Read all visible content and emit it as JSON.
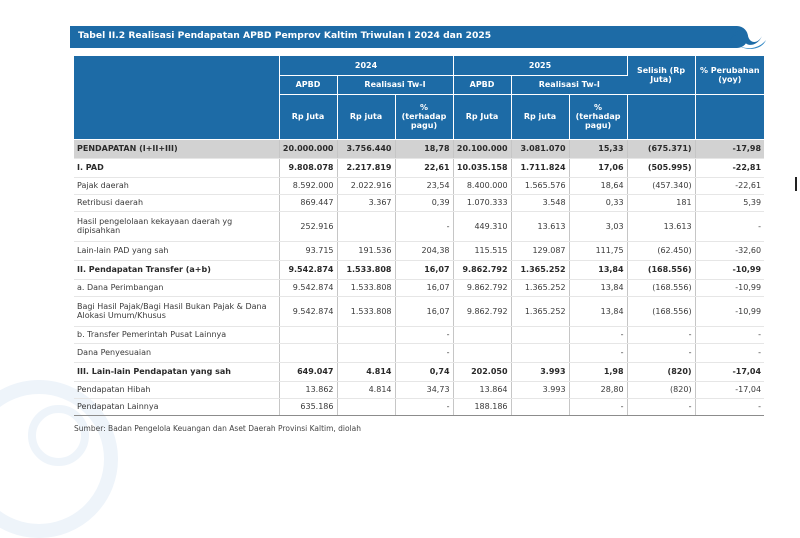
{
  "title": "Tabel II.2 Realisasi Pendapatan APBD Pemprov Kaltim Triwulan I 2024 dan 2025",
  "header": {
    "year_2024": "2024",
    "year_2025": "2025",
    "apbd": "APBD",
    "realisasi": "Realisasi Tw-I",
    "rp_juta_upper": "Rp Juta",
    "rp_juta_lower": "Rp juta",
    "pct": "% (terhadap pagu)",
    "selisih": "Selisih (Rp Juta)",
    "perubahan": "% Perubahan (yoy)"
  },
  "rows": [
    {
      "label": "PENDAPATAN (I+II+III)",
      "apbd24": "20.000.000",
      "real24": "3.756.440",
      "pct24": "18,78",
      "apbd25": "20.100.000",
      "real25": "3.081.070",
      "pct25": "15,33",
      "selisih": "(675.371)",
      "yoy": "-17,98"
    },
    {
      "label": "I. PAD",
      "apbd24": "9.808.078",
      "real24": "2.217.819",
      "pct24": "22,61",
      "apbd25": "10.035.158",
      "real25": "1.711.824",
      "pct25": "17,06",
      "selisih": "(505.995)",
      "yoy": "-22,81"
    },
    {
      "label": "Pajak daerah",
      "apbd24": "8.592.000",
      "real24": "2.022.916",
      "pct24": "23,54",
      "apbd25": "8.400.000",
      "real25": "1.565.576",
      "pct25": "18,64",
      "selisih": "(457.340)",
      "yoy": "-22,61"
    },
    {
      "label": "Retribusi daerah",
      "apbd24": "869.447",
      "real24": "3.367",
      "pct24": "0,39",
      "apbd25": "1.070.333",
      "real25": "3.548",
      "pct25": "0,33",
      "selisih": "181",
      "yoy": "5,39"
    },
    {
      "label": "Hasil pengelolaan kekayaan daerah yg dipisahkan",
      "apbd24": "252.916",
      "real24": "",
      "pct24": "-",
      "apbd25": "449.310",
      "real25": "13.613",
      "pct25": "3,03",
      "selisih": "13.613",
      "yoy": "-"
    },
    {
      "label": "Lain-lain PAD yang sah",
      "apbd24": "93.715",
      "real24": "191.536",
      "pct24": "204,38",
      "apbd25": "115.515",
      "real25": "129.087",
      "pct25": "111,75",
      "selisih": "(62.450)",
      "yoy": "-32,60"
    },
    {
      "label": "II. Pendapatan Transfer (a+b)",
      "apbd24": "9.542.874",
      "real24": "1.533.808",
      "pct24": "16,07",
      "apbd25": "9.862.792",
      "real25": "1.365.252",
      "pct25": "13,84",
      "selisih": "(168.556)",
      "yoy": "-10,99"
    },
    {
      "label": "a. Dana Perimbangan",
      "apbd24": "9.542.874",
      "real24": "1.533.808",
      "pct24": "16,07",
      "apbd25": "9.862.792",
      "real25": "1.365.252",
      "pct25": "13,84",
      "selisih": "(168.556)",
      "yoy": "-10,99"
    },
    {
      "label": "Bagi Hasil Pajak/Bagi Hasil Bukan Pajak & Dana Alokasi Umum/Khusus",
      "apbd24": "9.542.874",
      "real24": "1.533.808",
      "pct24": "16,07",
      "apbd25": "9.862.792",
      "real25": "1.365.252",
      "pct25": "13,84",
      "selisih": "(168.556)",
      "yoy": "-10,99"
    },
    {
      "label": "b. Transfer Pemerintah Pusat Lainnya",
      "apbd24": "",
      "real24": "",
      "pct24": "-",
      "apbd25": "",
      "real25": "",
      "pct25": "-",
      "selisih": "-",
      "yoy": "-"
    },
    {
      "label": "Dana Penyesuaian",
      "apbd24": "",
      "real24": "",
      "pct24": "-",
      "apbd25": "",
      "real25": "",
      "pct25": "-",
      "selisih": "-",
      "yoy": "-"
    },
    {
      "label": "III. Lain-lain Pendapatan yang sah",
      "apbd24": "649.047",
      "real24": "4.814",
      "pct24": "0,74",
      "apbd25": "202.050",
      "real25": "3.993",
      "pct25": "1,98",
      "selisih": "(820)",
      "yoy": "-17,04"
    },
    {
      "label": "Pendapatan Hibah",
      "apbd24": "13.862",
      "real24": "4.814",
      "pct24": "34,73",
      "apbd25": "13.864",
      "real25": "3.993",
      "pct25": "28,80",
      "selisih": "(820)",
      "yoy": "-17,04"
    },
    {
      "label": "Pendapatan Lainnya",
      "apbd24": "635.186",
      "real24": "",
      "pct24": "-",
      "apbd25": "188.186",
      "real25": "",
      "pct25": "-",
      "selisih": "-",
      "yoy": "-"
    }
  ],
  "source": "Sumber: Badan Pengelola Keuangan dan Aset Daerah Provinsi Kaltim, diolah",
  "colors": {
    "header_blue": "#1d6ba6",
    "total_row_gray": "#d2d2d2"
  }
}
